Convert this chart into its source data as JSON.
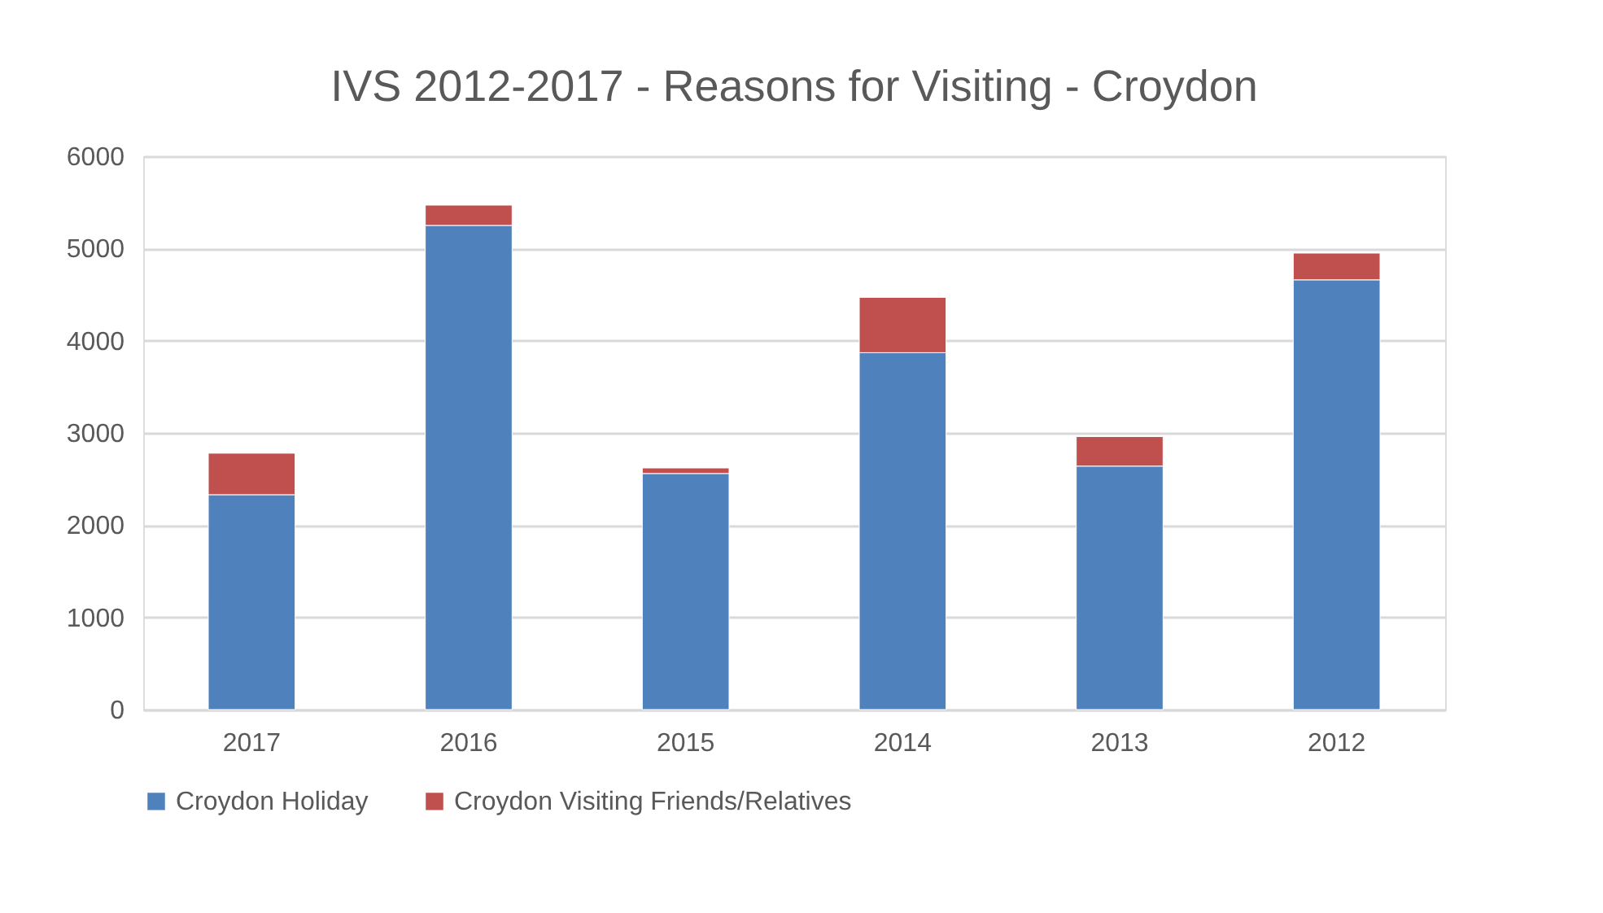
{
  "chart_data": {
    "type": "bar",
    "title": "IVS 2012-2017 - Reasons for Visiting - Croydon",
    "categories": [
      "2017",
      "2016",
      "2015",
      "2014",
      "2013",
      "2012"
    ],
    "series": [
      {
        "name": "Croydon Holiday",
        "color": "#4f81bd",
        "values": [
          2330,
          5250,
          2560,
          3870,
          2640,
          4660
        ]
      },
      {
        "name": "Croydon Visiting Friends/Relatives",
        "color": "#c0504d",
        "values": [
          450,
          220,
          60,
          600,
          320,
          290
        ]
      }
    ],
    "stacked": true,
    "ylim": [
      0,
      6000
    ],
    "yticks": [
      0,
      1000,
      2000,
      3000,
      4000,
      5000,
      6000
    ],
    "grid": "y",
    "legend": "bottom"
  }
}
